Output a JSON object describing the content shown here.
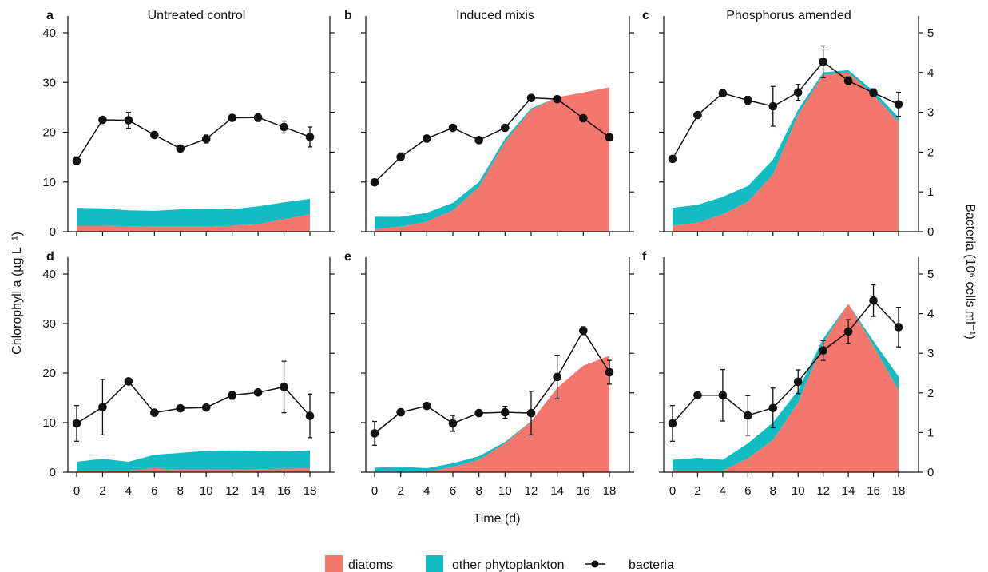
{
  "figure": {
    "ylabel_left": "Chlorophyll a (µg L⁻¹)",
    "ylabel_right": "Bacteria (10⁶ cells ml⁻¹)",
    "xlabel": "Time (d)",
    "legend": {
      "diatoms": "diatoms",
      "other": "other phytoplankton",
      "bacteria": "bacteria"
    },
    "colors": {
      "diatoms": "#f4776d",
      "other_phytoplankton": "#13bcc3",
      "bacteria": "#111111"
    }
  },
  "chart_data": [
    {
      "panel": "a",
      "title": "Untreated control",
      "type": "area",
      "x": [
        0,
        2,
        4,
        6,
        8,
        10,
        12,
        14,
        16,
        18
      ],
      "xlim": [
        0,
        18
      ],
      "xticks": [
        "0",
        "2",
        "4",
        "6",
        "8",
        "10",
        "12",
        "14",
        "16",
        "18"
      ],
      "show_xticks": false,
      "ylim_left": [
        0,
        40
      ],
      "yticks_left": [
        "0",
        "10",
        "20",
        "30",
        "40"
      ],
      "show_left_ticks": true,
      "ylim_right": [
        0,
        5
      ],
      "yticks_right": [
        "0",
        "1",
        "2",
        "3",
        "4",
        "5"
      ],
      "show_right_ticks": false,
      "series": [
        {
          "name": "diatoms",
          "axis": "left",
          "stack": "bottom",
          "values": [
            1.2,
            1.2,
            1.1,
            1.0,
            1.0,
            1.0,
            1.2,
            1.5,
            2.5,
            3.5
          ]
        },
        {
          "name": "other phytoplankton",
          "axis": "left",
          "stack": "top",
          "values": [
            3.6,
            3.5,
            3.2,
            3.2,
            3.5,
            3.6,
            3.3,
            3.6,
            3.4,
            3.1
          ]
        },
        {
          "name": "bacteria",
          "axis": "right",
          "type": "line",
          "values": [
            1.78,
            2.81,
            2.8,
            2.43,
            2.09,
            2.33,
            2.86,
            2.87,
            2.63,
            2.38
          ],
          "err": [
            0.1,
            0.05,
            0.2,
            0.05,
            0.05,
            0.1,
            0.05,
            0.1,
            0.15,
            0.25
          ]
        }
      ]
    },
    {
      "panel": "b",
      "title": "Induced mixis",
      "type": "area",
      "x": [
        0,
        2,
        4,
        6,
        8,
        10,
        12,
        14,
        16,
        18
      ],
      "xlim": [
        0,
        18
      ],
      "xticks": [
        "0",
        "2",
        "4",
        "6",
        "8",
        "10",
        "12",
        "14",
        "16",
        "18"
      ],
      "show_xticks": false,
      "ylim_left": [
        0,
        40
      ],
      "yticks_left": [
        "0",
        "10",
        "20",
        "30",
        "40"
      ],
      "show_left_ticks": false,
      "ylim_right": [
        0,
        5
      ],
      "yticks_right": [
        "0",
        "1",
        "2",
        "3",
        "4",
        "5"
      ],
      "show_right_ticks": false,
      "series": [
        {
          "name": "diatoms",
          "axis": "left",
          "stack": "bottom",
          "values": [
            0.5,
            1.0,
            2.0,
            4.3,
            9.0,
            18.0,
            24.5,
            27.0,
            28.0,
            29.0
          ]
        },
        {
          "name": "other phytoplankton",
          "axis": "left",
          "stack": "top",
          "values": [
            2.5,
            2.0,
            1.8,
            1.5,
            1.0,
            0.7,
            0.3,
            0.0,
            0.0,
            0.0
          ]
        },
        {
          "name": "bacteria",
          "axis": "right",
          "type": "line",
          "values": [
            1.24,
            1.88,
            2.34,
            2.61,
            2.3,
            2.61,
            3.36,
            3.33,
            2.85,
            2.37
          ],
          "err": [
            0,
            0.1,
            0,
            0,
            0,
            0,
            0,
            0,
            0,
            0
          ]
        }
      ]
    },
    {
      "panel": "c",
      "title": "Phosphorus amended",
      "type": "area",
      "x": [
        0,
        2,
        4,
        6,
        8,
        10,
        12,
        14,
        16,
        18
      ],
      "xlim": [
        0,
        18
      ],
      "xticks": [
        "0",
        "2",
        "4",
        "6",
        "8",
        "10",
        "12",
        "14",
        "16",
        "18"
      ],
      "show_xticks": false,
      "ylim_left": [
        0,
        40
      ],
      "yticks_left": [
        "0",
        "10",
        "20",
        "30",
        "40"
      ],
      "show_left_ticks": false,
      "ylim_right": [
        0,
        5
      ],
      "yticks_right": [
        "0",
        "1",
        "2",
        "3",
        "4",
        "5"
      ],
      "show_right_ticks": true,
      "series": [
        {
          "name": "diatoms",
          "axis": "left",
          "stack": "bottom",
          "values": [
            1.2,
            1.8,
            3.5,
            6.0,
            11.5,
            23.5,
            31.5,
            32.0,
            27.5,
            22.0
          ]
        },
        {
          "name": "other phytoplankton",
          "axis": "left",
          "stack": "top",
          "values": [
            3.6,
            3.6,
            3.5,
            3.2,
            3.0,
            1.0,
            0.5,
            0.5,
            0.8,
            1.0
          ]
        },
        {
          "name": "bacteria",
          "axis": "right",
          "type": "line",
          "values": [
            1.83,
            2.93,
            3.48,
            3.3,
            3.15,
            3.5,
            4.27,
            3.79,
            3.49,
            3.2
          ],
          "err": [
            0,
            0.05,
            0,
            0.1,
            0.5,
            0.2,
            0.4,
            0.1,
            0.1,
            0.3
          ]
        }
      ]
    },
    {
      "panel": "d",
      "title": "",
      "type": "area",
      "x": [
        0,
        2,
        4,
        6,
        8,
        10,
        12,
        14,
        16,
        18
      ],
      "xlim": [
        0,
        18
      ],
      "xticks": [
        "0",
        "2",
        "4",
        "6",
        "8",
        "10",
        "12",
        "14",
        "16",
        "18"
      ],
      "show_xticks": true,
      "ylim_left": [
        0,
        40
      ],
      "yticks_left": [
        "0",
        "10",
        "20",
        "30",
        "40"
      ],
      "show_left_ticks": true,
      "ylim_right": [
        0,
        5
      ],
      "yticks_right": [
        "0",
        "1",
        "2",
        "3",
        "4",
        "5"
      ],
      "show_right_ticks": false,
      "series": [
        {
          "name": "diatoms",
          "axis": "left",
          "stack": "bottom",
          "values": [
            0.3,
            0.3,
            0.3,
            0.8,
            0.5,
            0.5,
            0.5,
            0.6,
            0.7,
            0.8
          ]
        },
        {
          "name": "other phytoplankton",
          "axis": "left",
          "stack": "top",
          "values": [
            1.8,
            2.4,
            1.8,
            2.7,
            3.4,
            3.8,
            3.9,
            3.7,
            3.5,
            3.6
          ]
        },
        {
          "name": "bacteria",
          "axis": "right",
          "type": "line",
          "values": [
            1.23,
            1.64,
            2.29,
            1.5,
            1.61,
            1.63,
            1.94,
            2.01,
            2.15,
            1.42
          ],
          "err": [
            0.45,
            0.7,
            0,
            0,
            0,
            0,
            0.1,
            0,
            0.65,
            0.55
          ]
        }
      ]
    },
    {
      "panel": "e",
      "title": "",
      "type": "area",
      "x": [
        0,
        2,
        4,
        6,
        8,
        10,
        12,
        14,
        16,
        18
      ],
      "xlim": [
        0,
        18
      ],
      "xticks": [
        "0",
        "2",
        "4",
        "6",
        "8",
        "10",
        "12",
        "14",
        "16",
        "18"
      ],
      "show_xticks": true,
      "ylim_left": [
        0,
        40
      ],
      "yticks_left": [
        "0",
        "10",
        "20",
        "30",
        "40"
      ],
      "show_left_ticks": false,
      "ylim_right": [
        0,
        5
      ],
      "yticks_right": [
        "0",
        "1",
        "2",
        "3",
        "4",
        "5"
      ],
      "show_right_ticks": false,
      "series": [
        {
          "name": "diatoms",
          "axis": "left",
          "stack": "bottom",
          "values": [
            0.1,
            0.1,
            0.1,
            1.0,
            2.5,
            5.8,
            10.2,
            17.0,
            21.5,
            23.5
          ]
        },
        {
          "name": "other phytoplankton",
          "axis": "left",
          "stack": "top",
          "values": [
            0.8,
            1.0,
            0.7,
            0.8,
            0.7,
            0.3,
            0.1,
            0.0,
            0.0,
            0.0
          ]
        },
        {
          "name": "bacteria",
          "axis": "right",
          "type": "line",
          "values": [
            0.98,
            1.51,
            1.67,
            1.23,
            1.49,
            1.51,
            1.49,
            2.4,
            3.57,
            2.52
          ],
          "err": [
            0.3,
            0,
            0,
            0.2,
            0,
            0.15,
            0.55,
            0.55,
            0.1,
            0.3
          ]
        }
      ]
    },
    {
      "panel": "f",
      "title": "",
      "type": "area",
      "x": [
        0,
        2,
        4,
        6,
        8,
        10,
        12,
        14,
        16,
        18
      ],
      "xlim": [
        0,
        18
      ],
      "xticks": [
        "0",
        "2",
        "4",
        "6",
        "8",
        "10",
        "12",
        "14",
        "16",
        "18"
      ],
      "show_xticks": true,
      "ylim_left": [
        0,
        40
      ],
      "yticks_left": [
        "0",
        "10",
        "20",
        "30",
        "40"
      ],
      "show_left_ticks": false,
      "ylim_right": [
        0,
        5
      ],
      "yticks_right": [
        "0",
        "1",
        "2",
        "3",
        "4",
        "5"
      ],
      "show_right_ticks": true,
      "series": [
        {
          "name": "diatoms",
          "axis": "left",
          "stack": "bottom",
          "values": [
            0.3,
            0.3,
            0.3,
            2.8,
            6.5,
            14.0,
            26.0,
            34.0,
            25.5,
            16.5
          ]
        },
        {
          "name": "other phytoplankton",
          "axis": "left",
          "stack": "top",
          "values": [
            2.2,
            2.6,
            2.2,
            3.0,
            3.5,
            2.5,
            1.0,
            0.0,
            1.0,
            2.8
          ]
        },
        {
          "name": "bacteria",
          "axis": "right",
          "type": "line",
          "values": [
            1.23,
            1.94,
            1.94,
            1.43,
            1.62,
            2.28,
            3.07,
            3.55,
            4.33,
            3.66
          ],
          "err": [
            0.45,
            0,
            0.65,
            0.5,
            0.5,
            0.3,
            0.25,
            0.3,
            0.4,
            0.5
          ]
        }
      ]
    }
  ]
}
